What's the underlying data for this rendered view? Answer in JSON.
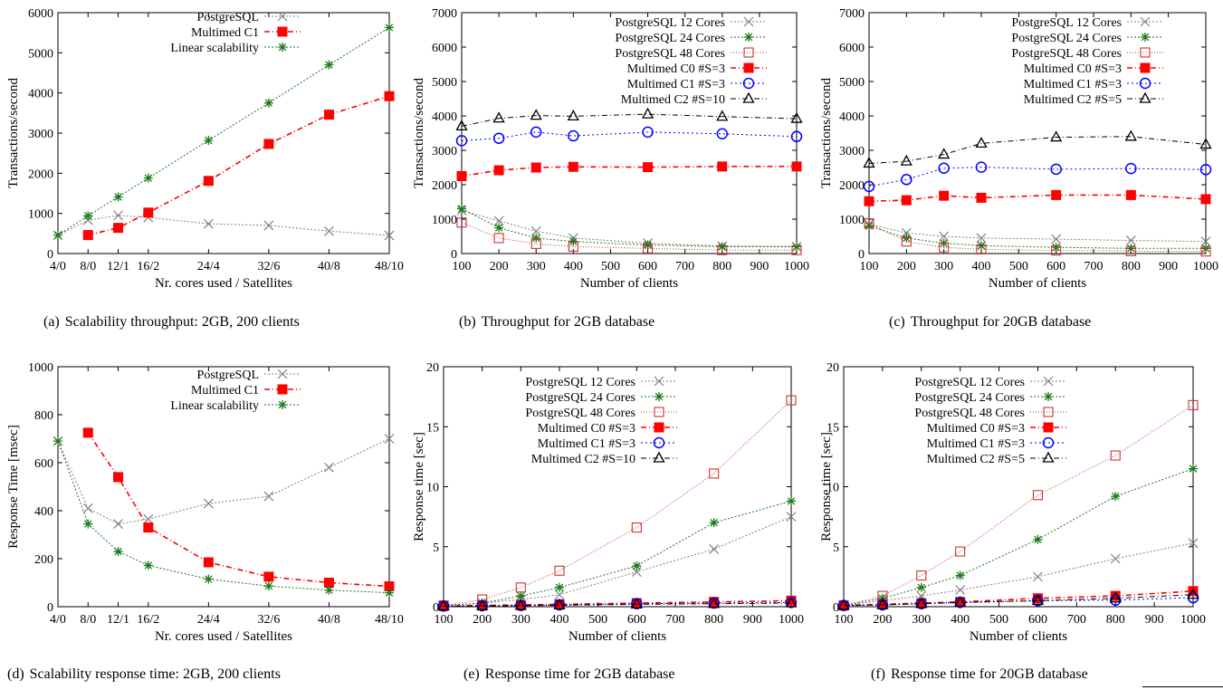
{
  "styles": {
    "PostgreSQL": {
      "color": "#808080",
      "marker": "x",
      "dash": "2,2"
    },
    "PostgreSQL 12 Cores": {
      "color": "#808080",
      "marker": "x",
      "dash": "2,2"
    },
    "PostgreSQL 24 Cores": {
      "color": "#1a7a1a",
      "marker": "star",
      "dash": "2,2"
    },
    "PostgreSQL 48 Cores": {
      "color": "#cc3333",
      "marker": "square-open",
      "dash": "1,2"
    },
    "Multimed C0 #S=3": {
      "color": "#ff0000",
      "marker": "square-filled",
      "dash": "6,3,1,3"
    },
    "Multimed C1": {
      "color": "#ff0000",
      "marker": "square-filled",
      "dash": "6,3,1,3"
    },
    "Linear scalability": {
      "color": "#1a7a1a",
      "marker": "star",
      "dash": "2,2"
    },
    "Multimed C1 #S=3": {
      "color": "#0000ff",
      "marker": "circle-open",
      "dash": "2,3"
    },
    "Multimed C2 #S=10": {
      "color": "#000000",
      "marker": "triangle-open",
      "dash": "6,3,1,3"
    },
    "Multimed C2 #S=5": {
      "color": "#000000",
      "marker": "triangle-open",
      "dash": "6,3,1,3"
    }
  },
  "chart_data": [
    {
      "id": "a",
      "type": "line",
      "caption_letter": "(a)",
      "caption": "Scalability throughput: 2GB, 200 clients",
      "xlabel": "Nr. cores used / Satellites",
      "ylabel": "Transactions/second",
      "categories": [
        "4/0",
        "8/0",
        "12/1",
        "16/2",
        "24/4",
        "32/6",
        "40/8",
        "48/10"
      ],
      "x": [
        4,
        8,
        12,
        16,
        24,
        32,
        40,
        48
      ],
      "xlim": [
        4,
        48
      ],
      "ylim": [
        0,
        6000
      ],
      "yticks": [
        0,
        1000,
        2000,
        3000,
        4000,
        5000,
        6000
      ],
      "legend_position": "top-right",
      "series": [
        {
          "name": "PostgreSQL",
          "x": [
            4,
            8,
            12,
            16,
            24,
            32,
            40,
            48
          ],
          "values": [
            450,
            830,
            950,
            900,
            740,
            700,
            560,
            450
          ]
        },
        {
          "name": "Multimed C1",
          "x": [
            8,
            12,
            16,
            24,
            32,
            40,
            48
          ],
          "values": [
            460,
            640,
            1020,
            1810,
            2730,
            3460,
            3920
          ]
        },
        {
          "name": "Linear scalability",
          "x": [
            4,
            8,
            12,
            16,
            24,
            32,
            40,
            48
          ],
          "values": [
            460,
            940,
            1410,
            1880,
            2820,
            3750,
            4700,
            5630
          ]
        }
      ]
    },
    {
      "id": "b",
      "type": "line",
      "caption_letter": "(b)",
      "caption": "Throughput for 2GB database",
      "xlabel": "Number of clients",
      "ylabel": "Transactions/second",
      "xlim": [
        100,
        1000
      ],
      "xticks": [
        100,
        200,
        300,
        400,
        500,
        600,
        700,
        800,
        900,
        1000
      ],
      "ylim": [
        0,
        7000
      ],
      "yticks": [
        0,
        1000,
        2000,
        3000,
        4000,
        5000,
        6000,
        7000
      ],
      "legend_position": "top-right",
      "series": [
        {
          "name": "PostgreSQL 12 Cores",
          "x": [
            100,
            200,
            300,
            400,
            600,
            800,
            1000
          ],
          "values": [
            1250,
            950,
            650,
            450,
            300,
            220,
            200
          ]
        },
        {
          "name": "PostgreSQL 24 Cores",
          "x": [
            100,
            200,
            300,
            400,
            600,
            800,
            1000
          ],
          "values": [
            1300,
            750,
            450,
            350,
            250,
            200,
            200
          ]
        },
        {
          "name": "PostgreSQL 48 Cores",
          "x": [
            100,
            200,
            300,
            400,
            600,
            800,
            1000
          ],
          "values": [
            900,
            450,
            280,
            200,
            150,
            100,
            100
          ]
        },
        {
          "name": "Multimed C0 #S=3",
          "x": [
            100,
            200,
            300,
            400,
            600,
            800,
            1000
          ],
          "values": [
            2250,
            2420,
            2500,
            2520,
            2510,
            2530,
            2530
          ]
        },
        {
          "name": "Multimed C1 #S=3",
          "x": [
            100,
            200,
            300,
            400,
            600,
            800,
            1000
          ],
          "values": [
            3280,
            3350,
            3530,
            3420,
            3530,
            3480,
            3400
          ]
        },
        {
          "name": "Multimed C2 #S=10",
          "x": [
            100,
            200,
            300,
            400,
            600,
            800,
            1000
          ],
          "values": [
            3700,
            3930,
            4010,
            3990,
            4050,
            3980,
            3920
          ]
        }
      ]
    },
    {
      "id": "c",
      "type": "line",
      "caption_letter": "(c)",
      "caption": "Throughput for 20GB database",
      "xlabel": "Number of clients",
      "ylabel": "Transactions/second",
      "xlim": [
        100,
        1000
      ],
      "xticks": [
        100,
        200,
        300,
        400,
        500,
        600,
        700,
        800,
        900,
        1000
      ],
      "ylim": [
        0,
        7000
      ],
      "yticks": [
        0,
        1000,
        2000,
        3000,
        4000,
        5000,
        6000,
        7000
      ],
      "legend_position": "top-right",
      "series": [
        {
          "name": "PostgreSQL 12 Cores",
          "x": [
            100,
            200,
            300,
            400,
            600,
            800,
            1000
          ],
          "values": [
            850,
            600,
            500,
            450,
            420,
            380,
            350
          ]
        },
        {
          "name": "PostgreSQL 24 Cores",
          "x": [
            100,
            200,
            300,
            400,
            600,
            800,
            1000
          ],
          "values": [
            800,
            450,
            300,
            230,
            180,
            150,
            150
          ]
        },
        {
          "name": "PostgreSQL 48 Cores",
          "x": [
            100,
            200,
            300,
            400,
            600,
            800,
            1000
          ],
          "values": [
            880,
            350,
            180,
            120,
            90,
            70,
            60
          ]
        },
        {
          "name": "Multimed C0 #S=3",
          "x": [
            100,
            200,
            300,
            400,
            600,
            800,
            1000
          ],
          "values": [
            1520,
            1550,
            1680,
            1620,
            1700,
            1700,
            1580
          ]
        },
        {
          "name": "Multimed C1 #S=3",
          "x": [
            100,
            200,
            300,
            400,
            600,
            800,
            1000
          ],
          "values": [
            1950,
            2150,
            2480,
            2510,
            2450,
            2470,
            2440
          ]
        },
        {
          "name": "Multimed C2 #S=5",
          "x": [
            100,
            200,
            300,
            400,
            600,
            800,
            1000
          ],
          "values": [
            2620,
            2680,
            2880,
            3200,
            3380,
            3400,
            3170
          ]
        }
      ]
    },
    {
      "id": "d",
      "type": "line",
      "caption_letter": "(d)",
      "caption": "Scalability response time: 2GB, 200 clients",
      "xlabel": "Nr. cores used / Satellites",
      "ylabel": "Response Time [msec]",
      "categories": [
        "4/0",
        "8/0",
        "12/1",
        "16/2",
        "24/4",
        "32/6",
        "40/8",
        "48/10"
      ],
      "x": [
        4,
        8,
        12,
        16,
        24,
        32,
        40,
        48
      ],
      "xlim": [
        4,
        48
      ],
      "ylim": [
        0,
        1000
      ],
      "yticks": [
        0,
        200,
        400,
        600,
        800,
        1000
      ],
      "legend_position": "top-right",
      "series": [
        {
          "name": "PostgreSQL",
          "x": [
            4,
            8,
            12,
            16,
            24,
            32,
            40,
            48
          ],
          "values": [
            690,
            410,
            345,
            365,
            430,
            460,
            580,
            700
          ]
        },
        {
          "name": "Multimed C1",
          "x": [
            8,
            12,
            16,
            24,
            32,
            40,
            48
          ],
          "values": [
            725,
            540,
            330,
            185,
            125,
            100,
            85
          ]
        },
        {
          "name": "Linear scalability",
          "x": [
            4,
            8,
            12,
            16,
            24,
            32,
            40,
            48
          ],
          "values": [
            690,
            345,
            230,
            172,
            115,
            86,
            69,
            58
          ]
        }
      ]
    },
    {
      "id": "e",
      "type": "line",
      "caption_letter": "(e)",
      "caption": "Response time for 2GB database",
      "xlabel": "Number of clients",
      "ylabel": "Response time [sec]",
      "xlim": [
        100,
        1000
      ],
      "xticks": [
        100,
        200,
        300,
        400,
        500,
        600,
        700,
        800,
        900,
        1000
      ],
      "ylim": [
        0,
        20
      ],
      "yticks": [
        0,
        5,
        10,
        15,
        20
      ],
      "legend_position": "top-left",
      "series": [
        {
          "name": "PostgreSQL 12 Cores",
          "x": [
            100,
            200,
            300,
            400,
            600,
            800,
            1000
          ],
          "values": [
            0.1,
            0.3,
            0.6,
            1.0,
            2.9,
            4.8,
            7.5
          ]
        },
        {
          "name": "PostgreSQL 24 Cores",
          "x": [
            100,
            200,
            300,
            400,
            600,
            800,
            1000
          ],
          "values": [
            0.1,
            0.3,
            0.9,
            1.6,
            3.4,
            7.0,
            8.8
          ]
        },
        {
          "name": "PostgreSQL 48 Cores",
          "x": [
            100,
            200,
            300,
            400,
            600,
            800,
            1000
          ],
          "values": [
            0.1,
            0.6,
            1.6,
            3.0,
            6.6,
            11.1,
            17.2
          ]
        },
        {
          "name": "Multimed C0 #S=3",
          "x": [
            100,
            200,
            300,
            400,
            600,
            800,
            1000
          ],
          "values": [
            0.05,
            0.1,
            0.15,
            0.2,
            0.3,
            0.4,
            0.5
          ]
        },
        {
          "name": "Multimed C1 #S=3",
          "x": [
            100,
            200,
            300,
            400,
            600,
            800,
            1000
          ],
          "values": [
            0.05,
            0.08,
            0.1,
            0.15,
            0.25,
            0.3,
            0.35
          ]
        },
        {
          "name": "Multimed C2 #S=10",
          "x": [
            100,
            200,
            300,
            400,
            600,
            800,
            1000
          ],
          "values": [
            0.05,
            0.06,
            0.08,
            0.12,
            0.2,
            0.25,
            0.3
          ]
        }
      ]
    },
    {
      "id": "f",
      "type": "line",
      "caption_letter": "(f)",
      "caption": "Response time for 20GB database",
      "xlabel": "Number of clients",
      "ylabel": "Response time [sec]",
      "xlim": [
        100,
        1000
      ],
      "xticks": [
        100,
        200,
        300,
        400,
        500,
        600,
        700,
        800,
        900,
        1000
      ],
      "ylim": [
        0,
        20
      ],
      "yticks": [
        0,
        5,
        10,
        15,
        20
      ],
      "legend_position": "top-left",
      "series": [
        {
          "name": "PostgreSQL 12 Cores",
          "x": [
            100,
            200,
            300,
            400,
            600,
            800,
            1000
          ],
          "values": [
            0.1,
            0.5,
            0.9,
            1.4,
            2.5,
            4.0,
            5.3
          ]
        },
        {
          "name": "PostgreSQL 24 Cores",
          "x": [
            100,
            200,
            300,
            400,
            600,
            800,
            1000
          ],
          "values": [
            0.1,
            0.7,
            1.6,
            2.6,
            5.6,
            9.2,
            11.5
          ]
        },
        {
          "name": "PostgreSQL 48 Cores",
          "x": [
            100,
            200,
            300,
            400,
            600,
            800,
            1000
          ],
          "values": [
            0.1,
            0.9,
            2.6,
            4.6,
            9.3,
            12.6,
            16.8
          ]
        },
        {
          "name": "Multimed C0 #S=3",
          "x": [
            100,
            200,
            300,
            400,
            600,
            800,
            1000
          ],
          "values": [
            0.1,
            0.2,
            0.3,
            0.4,
            0.7,
            0.9,
            1.3
          ]
        },
        {
          "name": "Multimed C1 #S=3",
          "x": [
            100,
            200,
            300,
            400,
            600,
            800,
            1000
          ],
          "values": [
            0.1,
            0.15,
            0.25,
            0.35,
            0.5,
            0.55,
            0.75
          ]
        },
        {
          "name": "Multimed C2 #S=5",
          "x": [
            100,
            200,
            300,
            400,
            600,
            800,
            1000
          ],
          "values": [
            0.1,
            0.15,
            0.25,
            0.35,
            0.5,
            0.7,
            1.0
          ]
        }
      ]
    }
  ]
}
